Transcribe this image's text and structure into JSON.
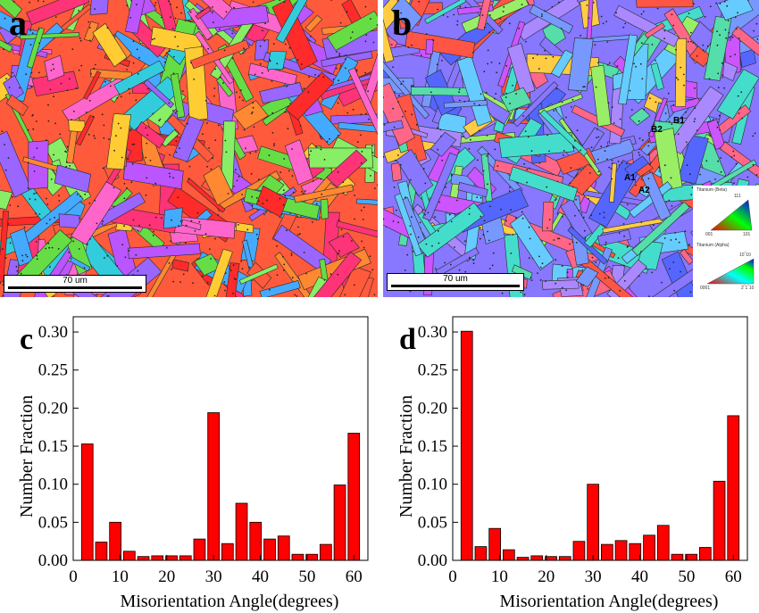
{
  "panels": {
    "a": {
      "letter": "a",
      "scale_label": "70 um"
    },
    "b": {
      "letter": "b",
      "scale_label": "70 um",
      "annotations": [
        "A1",
        "A2",
        "B1",
        "B2"
      ],
      "legend": {
        "beta_title": "Titanium (Beta)",
        "beta_top": "111",
        "beta_left": "001",
        "beta_right": "101",
        "alpha_title": "Titanium (Alpha)",
        "alpha_top": "10‾10",
        "alpha_left": "0001",
        "alpha_right": "2‾1‾10"
      }
    }
  },
  "chart_data": [
    {
      "type": "bar",
      "panel": "c",
      "xlabel": "Misorientation Angle(degrees)",
      "ylabel": "Number Fraction",
      "xlim": [
        0,
        63
      ],
      "ylim": [
        0,
        0.32
      ],
      "xticks": [
        0,
        10,
        20,
        30,
        40,
        50,
        60
      ],
      "yticks": [
        0.0,
        0.05,
        0.1,
        0.15,
        0.2,
        0.25,
        0.3
      ],
      "bar_color": "#ff0000",
      "x": [
        3,
        6,
        9,
        12,
        15,
        18,
        21,
        24,
        27,
        30,
        33,
        36,
        39,
        42,
        45,
        48,
        51,
        54,
        57,
        60,
        62
      ],
      "values": [
        0.153,
        0.024,
        0.05,
        0.012,
        0.005,
        0.006,
        0.006,
        0.006,
        0.028,
        0.194,
        0.022,
        0.075,
        0.05,
        0.028,
        0.032,
        0.008,
        0.008,
        0.021,
        0.099,
        0.167,
        0.0
      ]
    },
    {
      "type": "bar",
      "panel": "d",
      "xlabel": "Misorientation Angle(degrees)",
      "ylabel": "Number Fraction",
      "xlim": [
        0,
        63
      ],
      "ylim": [
        0,
        0.32
      ],
      "xticks": [
        0,
        10,
        20,
        30,
        40,
        50,
        60
      ],
      "yticks": [
        0.0,
        0.05,
        0.1,
        0.15,
        0.2,
        0.25,
        0.3
      ],
      "bar_color": "#ff0000",
      "x": [
        3,
        6,
        9,
        12,
        15,
        18,
        21,
        24,
        27,
        30,
        33,
        36,
        39,
        42,
        45,
        48,
        51,
        54,
        57,
        60
      ],
      "values": [
        0.301,
        0.018,
        0.042,
        0.014,
        0.004,
        0.006,
        0.005,
        0.005,
        0.025,
        0.1,
        0.021,
        0.026,
        0.022,
        0.033,
        0.046,
        0.008,
        0.008,
        0.017,
        0.104,
        0.19
      ]
    }
  ]
}
